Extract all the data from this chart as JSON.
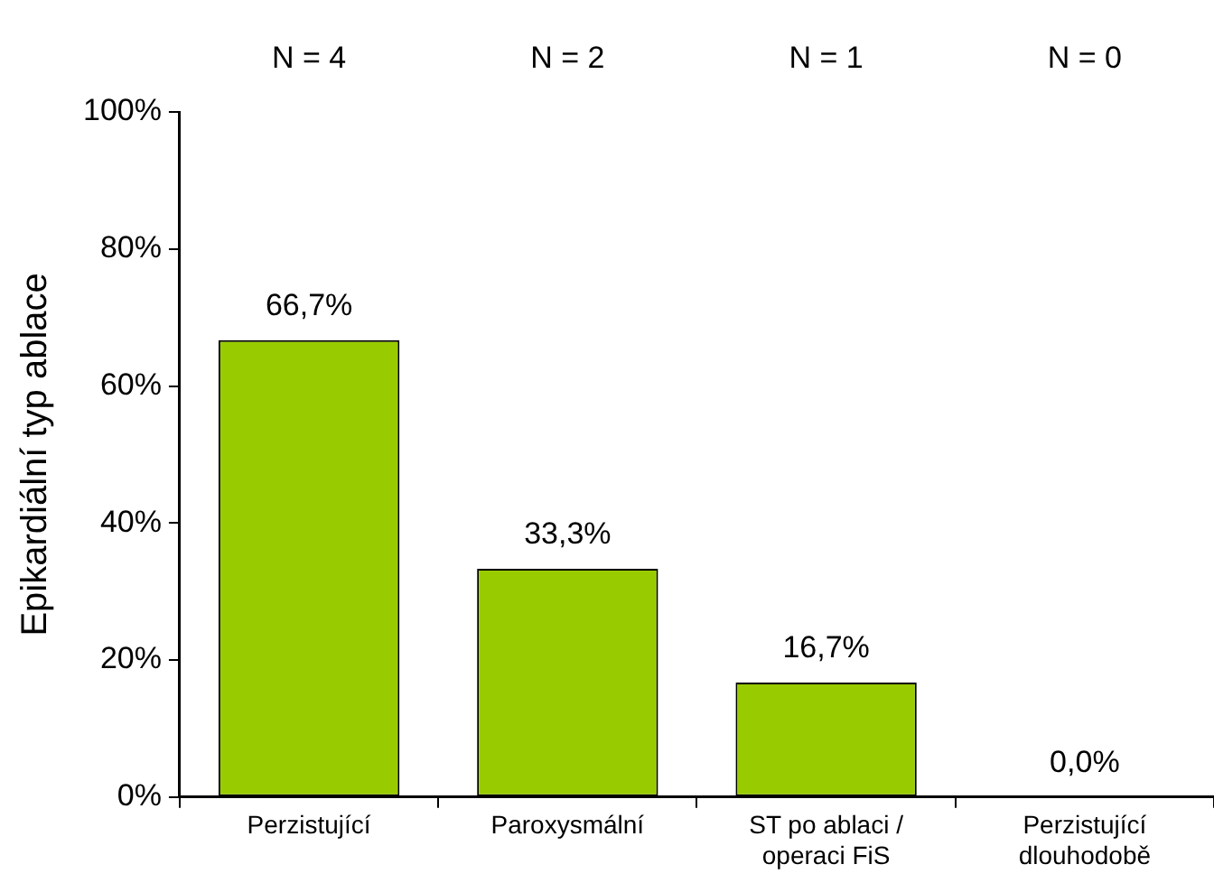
{
  "chart_data": {
    "type": "bar",
    "ylabel": "Epikardiální typ ablace",
    "categories": [
      "Perzistující",
      "Paroxysmální",
      "ST po ablaci /\noperaci FiS",
      "Perzistující\ndlouhodobě"
    ],
    "values": [
      66.7,
      33.3,
      16.7,
      0
    ],
    "value_labels": [
      "66,7%",
      "33,3%",
      "16,7%",
      "0,0%"
    ],
    "color": "#99cc00",
    "ylim": [
      0,
      100
    ],
    "yticks": [
      {
        "value": 0,
        "label": "0%"
      },
      {
        "value": 20,
        "label": "20%"
      },
      {
        "value": 40,
        "label": "40%"
      },
      {
        "value": 60,
        "label": "60%"
      },
      {
        "value": 80,
        "label": "80%"
      },
      {
        "value": 100,
        "label": "100%"
      }
    ],
    "annotations": [
      "N = 4",
      "N = 2",
      "N = 1",
      "N = 0"
    ],
    "grid": false,
    "legend": false
  }
}
